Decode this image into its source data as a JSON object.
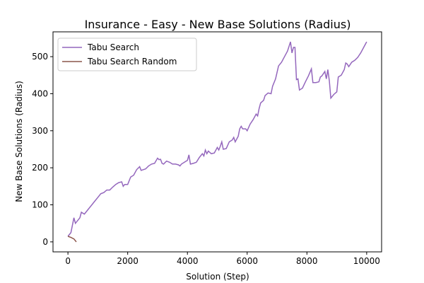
{
  "chart_data": {
    "type": "line",
    "title": "Insurance - Easy - New Base Solutions (Radius)",
    "x_label": "Solution (Step)",
    "y_label": "New Base Solutions (Radius)",
    "xlim": [
      -500,
      10500
    ],
    "ylim": [
      -27,
      567
    ],
    "xticks": [
      0,
      2000,
      4000,
      6000,
      8000,
      10000
    ],
    "yticks": [
      0,
      100,
      200,
      300,
      400,
      500
    ],
    "legend": "upper left",
    "series": [
      {
        "name": "Tabu Search",
        "color": "#9467bd",
        "x": [
          0,
          100,
          200,
          250,
          400,
          450,
          550,
          700,
          900,
          1000,
          1100,
          1200,
          1300,
          1400,
          1500,
          1600,
          1700,
          1800,
          1850,
          1900,
          2000,
          2100,
          2200,
          2300,
          2400,
          2450,
          2600,
          2700,
          2800,
          2900,
          3000,
          3050,
          3100,
          3150,
          3200,
          3300,
          3400,
          3500,
          3600,
          3700,
          3750,
          3800,
          3900,
          4000,
          4050,
          4100,
          4200,
          4300,
          4400,
          4500,
          4550,
          4600,
          4650,
          4700,
          4800,
          4900,
          5000,
          5050,
          5100,
          5150,
          5200,
          5300,
          5400,
          5500,
          5550,
          5600,
          5700,
          5750,
          5800,
          5850,
          5950,
          6000,
          6100,
          6200,
          6300,
          6350,
          6400,
          6450,
          6550,
          6600,
          6700,
          6800,
          6850,
          6950,
          7050,
          7150,
          7250,
          7350,
          7450,
          7500,
          7550,
          7600,
          7650,
          7700,
          7750,
          7850,
          7950,
          8050,
          8150,
          8200,
          8300,
          8400,
          8450,
          8500,
          8600,
          8650,
          8700,
          8750,
          8800,
          8900,
          9000,
          9050,
          9150,
          9250,
          9300,
          9350,
          9400,
          9500,
          9600,
          9700,
          9800,
          9900,
          10000
        ],
        "values": [
          15,
          25,
          65,
          50,
          65,
          80,
          75,
          90,
          110,
          120,
          130,
          133,
          140,
          140,
          148,
          155,
          160,
          162,
          150,
          155,
          155,
          175,
          180,
          195,
          203,
          193,
          197,
          205,
          210,
          212,
          226,
          222,
          223,
          212,
          210,
          218,
          215,
          210,
          210,
          208,
          205,
          210,
          215,
          220,
          235,
          210,
          212,
          215,
          228,
          238,
          232,
          248,
          238,
          245,
          238,
          240,
          255,
          248,
          258,
          270,
          250,
          252,
          270,
          275,
          282,
          270,
          285,
          305,
          312,
          305,
          305,
          300,
          318,
          330,
          345,
          340,
          360,
          375,
          382,
          395,
          402,
          400,
          420,
          440,
          475,
          485,
          500,
          515,
          540,
          510,
          525,
          525,
          438,
          440,
          410,
          415,
          432,
          448,
          467,
          430,
          430,
          432,
          445,
          448,
          460,
          440,
          465,
          435,
          388,
          398,
          405,
          445,
          450,
          465,
          483,
          480,
          473,
          485,
          490,
          498,
          510,
          525,
          540
        ]
      },
      {
        "name": "Tabu Search Random",
        "color": "#8c564b",
        "x": [
          0,
          100,
          200,
          280
        ],
        "values": [
          15,
          12,
          8,
          0
        ]
      }
    ]
  }
}
